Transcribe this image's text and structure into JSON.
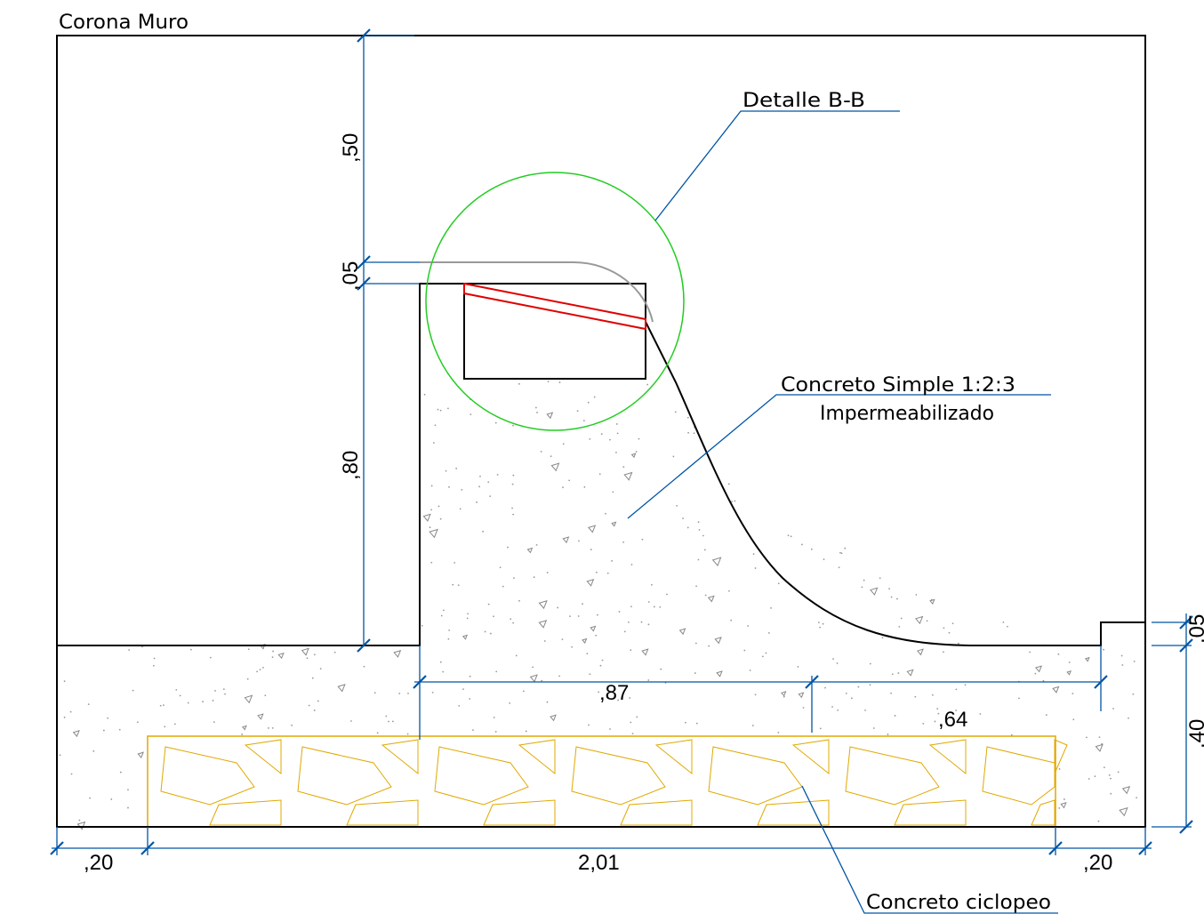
{
  "labels": {
    "title": "Corona Muro",
    "detail": "Detalle B-B",
    "concrete_simple_line1": "Concreto Simple 1:2:3",
    "concrete_simple_line2": "Impermeabilizado",
    "concrete_cyclopean": "Concreto ciclopeo"
  },
  "dimensions": {
    "top_height": ",50",
    "step_height": ",05",
    "wall_height": ",80",
    "base_left_length": ",87",
    "base_right_length": ",64",
    "right_step": ",05",
    "base_thickness": ",40",
    "left_edge": ",20",
    "total_width": "2,01",
    "right_edge": ",20"
  },
  "colors": {
    "outline": "#000000",
    "dimension": "#0055a5",
    "detail_circle": "#22cc22",
    "waterproof_joint": "#e00000",
    "cyclopean_stone": "#e0a800",
    "aggregate": "#888888",
    "rounded_edge": "#999999"
  }
}
